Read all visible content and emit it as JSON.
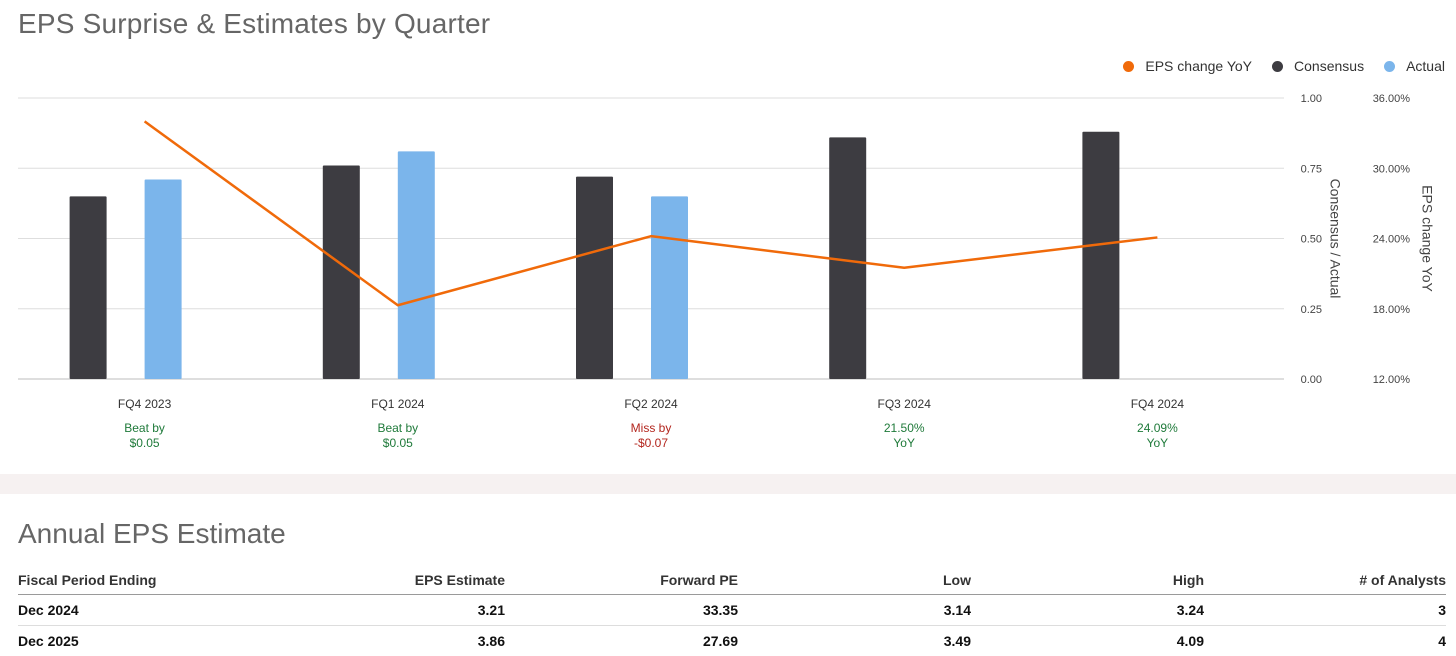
{
  "chart_data": {
    "type": "bar",
    "title": "EPS Surprise & Estimates by Quarter",
    "categories": [
      "FQ4 2023",
      "FQ1 2024",
      "FQ2 2024",
      "FQ3 2024",
      "FQ4 2024"
    ],
    "series": [
      {
        "name": "Consensus",
        "type": "bar",
        "axis": "left",
        "color": "#3d3c41",
        "values": [
          0.65,
          0.76,
          0.72,
          0.86,
          0.88
        ]
      },
      {
        "name": "Actual",
        "type": "bar",
        "axis": "left",
        "color": "#7bb5eb",
        "values": [
          0.71,
          0.81,
          0.65,
          null,
          null
        ]
      },
      {
        "name": "EPS change YoY",
        "type": "line",
        "axis": "right",
        "color": "#f06a0a",
        "values": [
          34.0,
          18.3,
          24.2,
          21.5,
          24.09
        ]
      }
    ],
    "y_left": {
      "label": "Consensus / Actual",
      "range": [
        0,
        1
      ],
      "ticks": [
        "0.00",
        "0.25",
        "0.50",
        "0.75",
        "1.00"
      ]
    },
    "y_right": {
      "label": "EPS change YoY",
      "range": [
        12,
        36
      ],
      "ticks": [
        "12.00%",
        "18.00%",
        "24.00%",
        "30.00%",
        "36.00%"
      ]
    },
    "annotations": [
      {
        "line1": "Beat by",
        "line2": "$0.05",
        "color": "#1f7a3a"
      },
      {
        "line1": "Beat by",
        "line2": "$0.05",
        "color": "#1f7a3a"
      },
      {
        "line1": "Miss by",
        "line2": "-$0.07",
        "color": "#b3261e"
      },
      {
        "line1": "21.50%",
        "line2": "YoY",
        "color": "#1f7a3a"
      },
      {
        "line1": "24.09%",
        "line2": "YoY",
        "color": "#1f7a3a"
      }
    ],
    "grid": true,
    "legend_position": "top-right",
    "legend": [
      {
        "label": "EPS change YoY",
        "color": "#f06a0a"
      },
      {
        "label": "Consensus",
        "color": "#3d3c41"
      },
      {
        "label": "Actual",
        "color": "#7bb5eb"
      }
    ]
  },
  "annual": {
    "title": "Annual EPS Estimate",
    "columns": [
      "Fiscal Period Ending",
      "EPS Estimate",
      "Forward PE",
      "Low",
      "High",
      "# of Analysts"
    ],
    "rows": [
      [
        "Dec 2024",
        "3.21",
        "33.35",
        "3.14",
        "3.24",
        "3"
      ],
      [
        "Dec 2025",
        "3.86",
        "27.69",
        "3.49",
        "4.09",
        "4"
      ]
    ]
  }
}
